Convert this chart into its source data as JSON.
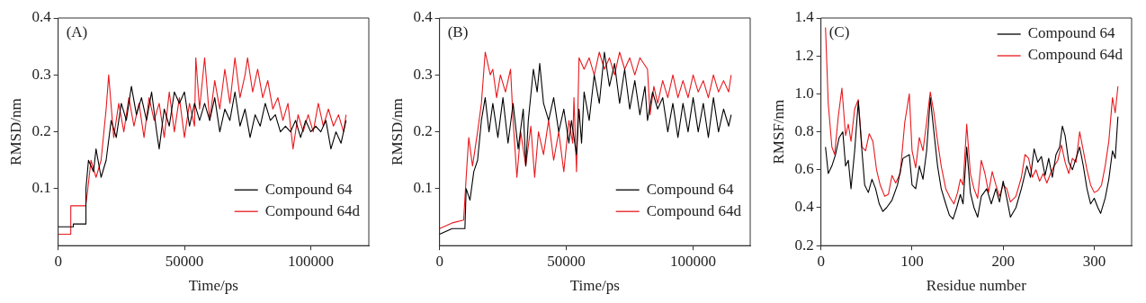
{
  "chart_data": [
    {
      "type": "line",
      "annotations": [
        "(A)"
      ],
      "xlabel": "Time/ps",
      "ylabel": "RMSD/nm",
      "xlim": [
        0,
        123000
      ],
      "ylim": [
        0,
        0.4
      ],
      "xticks": [
        0,
        50000,
        100000
      ],
      "yticks": [
        0.1,
        0.2,
        0.3,
        0.4
      ],
      "grid": false,
      "legend": "bottom right",
      "marker": "none",
      "line_style": "solid",
      "series": [
        {
          "name": "Compound 64",
          "color": "#000000",
          "x": [
            0,
            5900,
            6000,
            10900,
            11000,
            12000,
            14000,
            15000,
            17000,
            19000,
            21000,
            23000,
            25000,
            27000,
            29000,
            31000,
            33000,
            35000,
            37000,
            39000,
            40000,
            42000,
            44000,
            46000,
            48000,
            50000,
            52000,
            54000,
            56000,
            58000,
            60000,
            62000,
            64000,
            66000,
            68000,
            70000,
            72000,
            74000,
            76000,
            78000,
            80000,
            82000,
            84000,
            86000,
            88000,
            90000,
            92000,
            94000,
            96000,
            98000,
            100000,
            102000,
            104000,
            106000,
            108000,
            110000,
            112000,
            114000
          ],
          "values": [
            0.033,
            0.033,
            0.038,
            0.038,
            0.1,
            0.15,
            0.13,
            0.17,
            0.12,
            0.15,
            0.22,
            0.19,
            0.25,
            0.22,
            0.28,
            0.23,
            0.26,
            0.22,
            0.27,
            0.2,
            0.17,
            0.24,
            0.21,
            0.27,
            0.25,
            0.27,
            0.21,
            0.25,
            0.22,
            0.25,
            0.22,
            0.26,
            0.2,
            0.24,
            0.22,
            0.27,
            0.21,
            0.24,
            0.19,
            0.23,
            0.21,
            0.25,
            0.22,
            0.23,
            0.2,
            0.21,
            0.2,
            0.22,
            0.19,
            0.22,
            0.2,
            0.21,
            0.2,
            0.22,
            0.17,
            0.2,
            0.18,
            0.22
          ]
        },
        {
          "name": "Compound 64d",
          "color": "#e8191e",
          "x": [
            0,
            4900,
            5000,
            10900,
            11500,
            13000,
            15000,
            17000,
            19000,
            20000,
            22000,
            24000,
            26000,
            28000,
            30000,
            32000,
            34000,
            36000,
            38000,
            40000,
            42000,
            44000,
            46000,
            48000,
            50000,
            52000,
            54000,
            54500,
            56000,
            58000,
            60000,
            62000,
            64000,
            66000,
            68000,
            70000,
            72000,
            74000,
            75000,
            77000,
            79000,
            81000,
            83000,
            85000,
            87000,
            89000,
            91000,
            93000,
            95000,
            97000,
            99000,
            101000,
            103000,
            105000,
            107000,
            109000,
            111000,
            113000,
            114000
          ],
          "values": [
            0.02,
            0.02,
            0.07,
            0.07,
            0.09,
            0.15,
            0.12,
            0.15,
            0.24,
            0.3,
            0.19,
            0.25,
            0.2,
            0.26,
            0.21,
            0.25,
            0.19,
            0.26,
            0.22,
            0.25,
            0.19,
            0.27,
            0.2,
            0.26,
            0.19,
            0.25,
            0.21,
            0.33,
            0.24,
            0.33,
            0.22,
            0.29,
            0.24,
            0.31,
            0.25,
            0.33,
            0.26,
            0.3,
            0.33,
            0.27,
            0.31,
            0.26,
            0.29,
            0.24,
            0.26,
            0.22,
            0.25,
            0.17,
            0.23,
            0.2,
            0.23,
            0.2,
            0.25,
            0.21,
            0.24,
            0.21,
            0.23,
            0.2,
            0.23
          ]
        }
      ]
    },
    {
      "type": "line",
      "annotations": [
        "(B)"
      ],
      "xlabel": "Time/ps",
      "ylabel": "RMSD/nm",
      "xlim": [
        0,
        122500
      ],
      "ylim": [
        0,
        0.4
      ],
      "xticks": [
        0,
        50000,
        100000
      ],
      "yticks": [
        0.1,
        0.2,
        0.3,
        0.4
      ],
      "grid": false,
      "legend": "bottom right",
      "marker": "none",
      "line_style": "solid",
      "series": [
        {
          "name": "Compound 64",
          "color": "#000000",
          "x": [
            0,
            5000,
            10000,
            10500,
            12000,
            13500,
            15000,
            16500,
            18000,
            19500,
            21000,
            23000,
            25000,
            27000,
            29000,
            31000,
            33000,
            34000,
            35000,
            37000,
            38500,
            39500,
            41000,
            43000,
            45000,
            47000,
            49000,
            51000,
            52000,
            54000,
            55000,
            56000,
            57000,
            59000,
            61000,
            63000,
            65000,
            67000,
            69000,
            71000,
            73000,
            75000,
            77000,
            79000,
            81000,
            82000,
            84000,
            86000,
            88000,
            90000,
            92000,
            94000,
            96000,
            98000,
            100000,
            102000,
            104000,
            106000,
            108000,
            110000,
            112000,
            114000,
            115000
          ],
          "values": [
            0.02,
            0.03,
            0.03,
            0.1,
            0.08,
            0.13,
            0.15,
            0.22,
            0.26,
            0.2,
            0.25,
            0.19,
            0.26,
            0.18,
            0.25,
            0.17,
            0.24,
            0.14,
            0.22,
            0.31,
            0.27,
            0.32,
            0.25,
            0.22,
            0.26,
            0.2,
            0.24,
            0.18,
            0.22,
            0.16,
            0.24,
            0.18,
            0.27,
            0.22,
            0.3,
            0.25,
            0.34,
            0.28,
            0.32,
            0.25,
            0.31,
            0.24,
            0.29,
            0.23,
            0.28,
            0.22,
            0.27,
            0.24,
            0.26,
            0.2,
            0.25,
            0.19,
            0.25,
            0.2,
            0.26,
            0.2,
            0.25,
            0.19,
            0.26,
            0.2,
            0.24,
            0.21,
            0.23
          ]
        },
        {
          "name": "Compound 64d",
          "color": "#e8191e",
          "x": [
            0,
            5000,
            9500,
            10500,
            11500,
            13000,
            15000,
            16500,
            18000,
            20000,
            21000,
            22500,
            24000,
            26000,
            28000,
            29000,
            30500,
            32000,
            34000,
            36000,
            37500,
            39000,
            41000,
            43000,
            45000,
            47000,
            49000,
            51000,
            52500,
            53000,
            54000,
            55000,
            57000,
            59000,
            61000,
            63000,
            65000,
            67000,
            69000,
            71000,
            73000,
            75000,
            77000,
            79000,
            82000,
            83000,
            84500,
            86000,
            88000,
            90000,
            92000,
            94000,
            96000,
            98000,
            100000,
            102000,
            104000,
            106000,
            108000,
            110000,
            112000,
            114000,
            115000
          ],
          "values": [
            0.03,
            0.04,
            0.045,
            0.12,
            0.19,
            0.14,
            0.2,
            0.25,
            0.34,
            0.3,
            0.31,
            0.26,
            0.3,
            0.27,
            0.31,
            0.22,
            0.12,
            0.2,
            0.14,
            0.21,
            0.12,
            0.2,
            0.16,
            0.22,
            0.15,
            0.2,
            0.13,
            0.22,
            0.18,
            0.26,
            0.13,
            0.33,
            0.31,
            0.33,
            0.3,
            0.34,
            0.31,
            0.33,
            0.3,
            0.34,
            0.31,
            0.33,
            0.3,
            0.33,
            0.31,
            0.23,
            0.28,
            0.25,
            0.29,
            0.26,
            0.3,
            0.26,
            0.29,
            0.26,
            0.3,
            0.27,
            0.29,
            0.26,
            0.3,
            0.27,
            0.29,
            0.27,
            0.3
          ]
        }
      ]
    },
    {
      "type": "line",
      "annotations": [
        "(C)"
      ],
      "xlabel": "Residue number",
      "ylabel": "RMSF/nm",
      "xlim": [
        0,
        341
      ],
      "ylim": [
        0.2,
        1.4
      ],
      "xticks": [
        0,
        100,
        200,
        300
      ],
      "yticks": [
        0.2,
        0.4,
        0.6,
        0.8,
        {
          "value": 1,
          "label": "1.0"
        },
        1.2,
        1.4
      ],
      "grid": false,
      "legend": "top right",
      "marker": "none",
      "line_style": "solid",
      "series": [
        {
          "name": "Compound 64",
          "color": "#000000",
          "x": [
            5,
            8,
            12,
            16,
            20,
            24,
            27,
            30,
            33,
            37,
            41,
            45,
            48,
            52,
            56,
            60,
            64,
            68,
            72,
            78,
            84,
            90,
            97,
            100,
            104,
            108,
            112,
            116,
            120,
            124,
            128,
            132,
            137,
            141,
            145,
            149,
            153,
            156,
            160,
            164,
            168,
            172,
            176,
            182,
            187,
            192,
            196,
            200,
            204,
            208,
            214,
            220,
            226,
            230,
            234,
            238,
            242,
            246,
            250,
            254,
            258,
            262,
            265,
            268,
            272,
            276,
            280,
            284,
            288,
            292,
            296,
            300,
            304,
            307,
            312,
            316,
            320,
            323,
            326
          ],
          "values": [
            0.72,
            0.58,
            0.62,
            0.68,
            0.77,
            0.8,
            0.62,
            0.65,
            0.5,
            0.7,
            0.96,
            0.7,
            0.52,
            0.48,
            0.55,
            0.5,
            0.42,
            0.38,
            0.4,
            0.44,
            0.52,
            0.66,
            0.68,
            0.52,
            0.5,
            0.62,
            0.55,
            0.7,
            0.98,
            0.8,
            0.62,
            0.5,
            0.42,
            0.36,
            0.34,
            0.4,
            0.47,
            0.42,
            0.72,
            0.48,
            0.4,
            0.35,
            0.46,
            0.5,
            0.42,
            0.5,
            0.43,
            0.54,
            0.45,
            0.35,
            0.4,
            0.5,
            0.62,
            0.56,
            0.71,
            0.64,
            0.67,
            0.57,
            0.66,
            0.56,
            0.68,
            0.72,
            0.83,
            0.78,
            0.64,
            0.6,
            0.66,
            0.72,
            0.62,
            0.5,
            0.42,
            0.45,
            0.4,
            0.37,
            0.45,
            0.55,
            0.7,
            0.66,
            0.88
          ]
        },
        {
          "name": "Compound 64d",
          "color": "#e8191e",
          "x": [
            5,
            8,
            12,
            15,
            19,
            23,
            27,
            30,
            33,
            37,
            41,
            45,
            49,
            53,
            57,
            61,
            65,
            70,
            74,
            78,
            82,
            87,
            92,
            97,
            100,
            104,
            108,
            112,
            116,
            120,
            124,
            128,
            132,
            137,
            142,
            146,
            150,
            153,
            156,
            160,
            164,
            168,
            172,
            176,
            180,
            184,
            188,
            192,
            196,
            200,
            204,
            208,
            214,
            220,
            224,
            228,
            232,
            236,
            240,
            244,
            248,
            252,
            256,
            260,
            264,
            268,
            272,
            276,
            280,
            284,
            288,
            292,
            296,
            300,
            304,
            308,
            312,
            316,
            320,
            323,
            326
          ],
          "values": [
            1.35,
            0.95,
            0.72,
            0.68,
            0.88,
            1.03,
            0.78,
            0.84,
            0.75,
            0.92,
            0.97,
            0.72,
            0.7,
            0.79,
            0.75,
            0.6,
            0.52,
            0.46,
            0.47,
            0.57,
            0.53,
            0.58,
            0.85,
            1.0,
            0.7,
            0.61,
            0.77,
            0.7,
            0.85,
            1.01,
            0.9,
            0.75,
            0.62,
            0.5,
            0.45,
            0.42,
            0.48,
            0.55,
            0.52,
            0.84,
            0.58,
            0.5,
            0.45,
            0.65,
            0.58,
            0.48,
            0.59,
            0.52,
            0.46,
            0.52,
            0.5,
            0.43,
            0.46,
            0.56,
            0.68,
            0.66,
            0.56,
            0.6,
            0.54,
            0.58,
            0.53,
            0.58,
            0.62,
            0.65,
            0.73,
            0.64,
            0.58,
            0.66,
            0.64,
            0.8,
            0.7,
            0.6,
            0.52,
            0.48,
            0.49,
            0.52,
            0.62,
            0.75,
            0.98,
            0.9,
            1.04
          ]
        }
      ]
    }
  ]
}
